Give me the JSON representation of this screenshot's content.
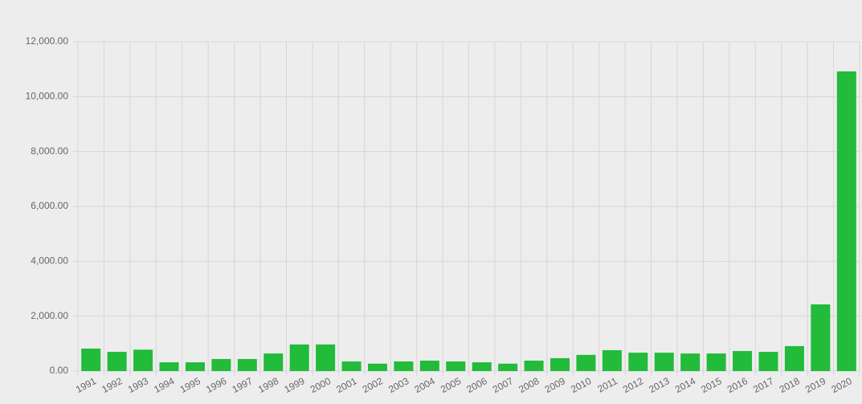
{
  "chart_data": {
    "type": "bar",
    "categories": [
      "1991",
      "1992",
      "1993",
      "1994",
      "1995",
      "1996",
      "1997",
      "1998",
      "1999",
      "2000",
      "2001",
      "2002",
      "2003",
      "2004",
      "2005",
      "2006",
      "2007",
      "2008",
      "2009",
      "2010",
      "2011",
      "2012",
      "2013",
      "2014",
      "2015",
      "2016",
      "2017",
      "2018",
      "2019",
      "2020"
    ],
    "values": [
      820,
      700,
      780,
      320,
      320,
      440,
      440,
      640,
      970,
      970,
      350,
      270,
      350,
      380,
      350,
      320,
      270,
      380,
      470,
      590,
      760,
      670,
      670,
      640,
      640,
      730,
      700,
      910,
      2430,
      10920
    ],
    "color": "#22bb3a",
    "ylim": [
      0,
      12000
    ],
    "yticks": [
      {
        "value": 0,
        "label": "0.00"
      },
      {
        "value": 2000,
        "label": "2,000.00"
      },
      {
        "value": 4000,
        "label": "4,000.00"
      },
      {
        "value": 6000,
        "label": "6,000.00"
      },
      {
        "value": 8000,
        "label": "8,000.00"
      },
      {
        "value": 10000,
        "label": "10,000.00"
      },
      {
        "value": 12000,
        "label": "12,000.00"
      }
    ],
    "grid": true
  }
}
